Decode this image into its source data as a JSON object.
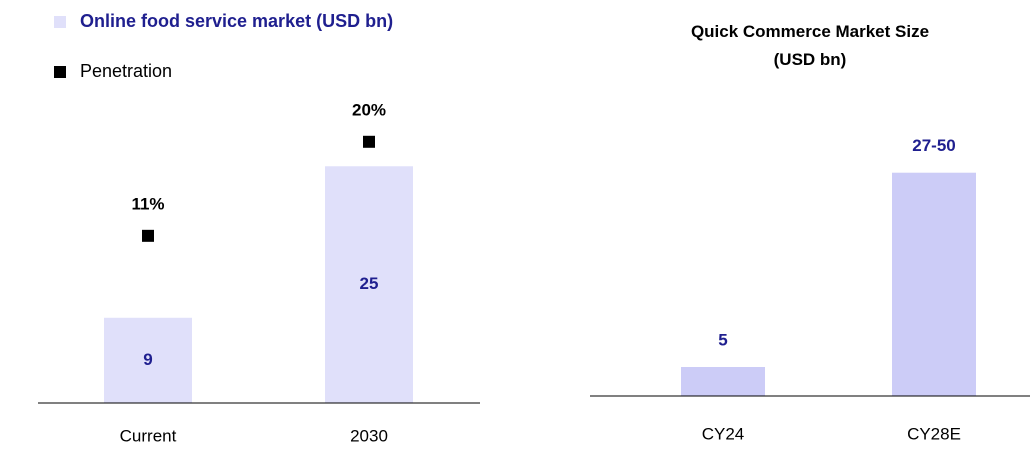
{
  "chart_data": [
    {
      "type": "bar",
      "categories": [
        "Current",
        "2030"
      ],
      "series": [
        {
          "name": "Online food service market (USD bn)",
          "color": "#e0e0fa",
          "values": [
            9,
            25
          ]
        },
        {
          "name": "Penetration",
          "color": "#000000",
          "axis": "y2",
          "values": [
            11,
            20
          ],
          "value_labels": [
            "11%",
            "20%"
          ]
        }
      ],
      "ylim": [
        0,
        32
      ],
      "y2lim": [
        -5,
        24
      ]
    },
    {
      "type": "bar",
      "title": "Quick Commerce Market Size (USD bn)",
      "categories": [
        "CY24",
        "CY28E"
      ],
      "values": [
        5,
        38.5
      ],
      "value_labels": [
        "5",
        "27-50"
      ],
      "color": "#ccccf7",
      "ylim": [
        0,
        45
      ]
    }
  ]
}
